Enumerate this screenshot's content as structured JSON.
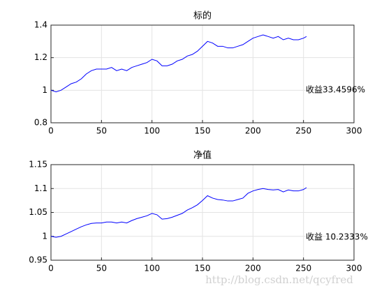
{
  "chart_data": [
    {
      "type": "line",
      "title": "标的",
      "x": [
        0,
        5,
        10,
        15,
        20,
        25,
        30,
        35,
        40,
        45,
        50,
        55,
        60,
        65,
        70,
        75,
        80,
        85,
        90,
        95,
        100,
        105,
        110,
        115,
        120,
        125,
        130,
        135,
        140,
        145,
        150,
        155,
        160,
        165,
        170,
        175,
        180,
        185,
        190,
        195,
        200,
        205,
        210,
        215,
        220,
        225,
        230,
        235,
        240,
        245,
        250,
        253
      ],
      "series": [
        {
          "color": "#0000ff",
          "values": [
            1.0,
            0.99,
            1.0,
            1.02,
            1.04,
            1.05,
            1.07,
            1.1,
            1.12,
            1.13,
            1.13,
            1.13,
            1.14,
            1.12,
            1.13,
            1.12,
            1.14,
            1.15,
            1.16,
            1.17,
            1.19,
            1.18,
            1.15,
            1.15,
            1.16,
            1.18,
            1.19,
            1.21,
            1.22,
            1.24,
            1.27,
            1.3,
            1.29,
            1.27,
            1.27,
            1.26,
            1.26,
            1.27,
            1.28,
            1.3,
            1.32,
            1.33,
            1.34,
            1.33,
            1.32,
            1.33,
            1.31,
            1.32,
            1.31,
            1.31,
            1.32,
            1.33
          ]
        }
      ],
      "xlim": [
        0,
        300
      ],
      "xticks": [
        0,
        50,
        100,
        150,
        200,
        250,
        300
      ],
      "ylim": [
        0.8,
        1.4
      ],
      "yticks": [
        0.8,
        1,
        1.2,
        1.4
      ],
      "grid": true,
      "annotation": "收益33.4596%"
    },
    {
      "type": "line",
      "title": "净值",
      "x": [
        0,
        5,
        10,
        15,
        20,
        25,
        30,
        35,
        40,
        45,
        50,
        55,
        60,
        65,
        70,
        75,
        80,
        85,
        90,
        95,
        100,
        105,
        110,
        115,
        120,
        125,
        130,
        135,
        140,
        145,
        150,
        155,
        160,
        165,
        170,
        175,
        180,
        185,
        190,
        195,
        200,
        205,
        210,
        215,
        220,
        225,
        230,
        235,
        240,
        245,
        250,
        253
      ],
      "series": [
        {
          "color": "#0000ff",
          "values": [
            1.0,
            0.998,
            1.0,
            1.005,
            1.01,
            1.015,
            1.02,
            1.024,
            1.027,
            1.028,
            1.028,
            1.03,
            1.03,
            1.028,
            1.03,
            1.028,
            1.033,
            1.037,
            1.04,
            1.043,
            1.048,
            1.045,
            1.036,
            1.037,
            1.04,
            1.044,
            1.048,
            1.055,
            1.06,
            1.066,
            1.075,
            1.085,
            1.08,
            1.077,
            1.076,
            1.074,
            1.074,
            1.077,
            1.08,
            1.09,
            1.095,
            1.098,
            1.1,
            1.098,
            1.097,
            1.098,
            1.093,
            1.097,
            1.095,
            1.095,
            1.098,
            1.102
          ]
        }
      ],
      "xlim": [
        0,
        300
      ],
      "xticks": [
        0,
        50,
        100,
        150,
        200,
        250,
        300
      ],
      "ylim": [
        0.95,
        1.15
      ],
      "yticks": [
        0.95,
        1,
        1.05,
        1.1,
        1.15
      ],
      "grid": true,
      "annotation": "收益 10.2333%"
    }
  ],
  "watermark": "http://blog.csdn.net/qcyfred"
}
